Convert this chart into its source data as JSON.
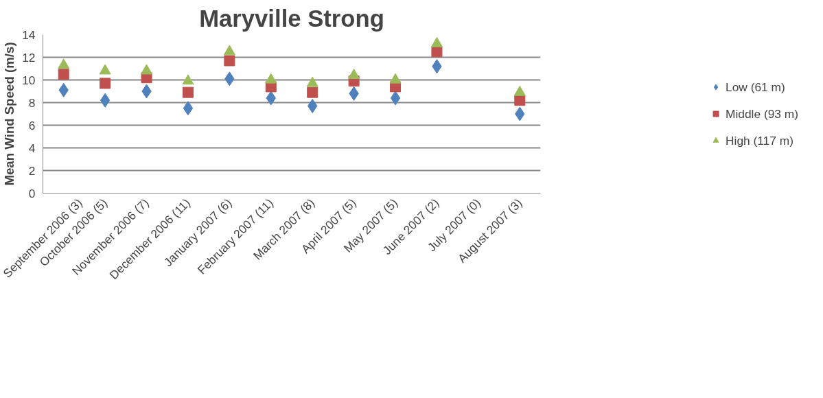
{
  "chart_data": {
    "type": "scatter",
    "title": "Maryville Strong",
    "ylabel": "Mean Wind Speed (m/s)",
    "categories": [
      "September 2006 (3)",
      "October 2006 (5)",
      "November 2006 (7)",
      "December 2006 (11)",
      "January 2007 (6)",
      "February 2007 (11)",
      "March 2007 (8)",
      "April 2007 (5)",
      "May 2007 (5)",
      "June 2007 (2)",
      "July 2007 (0)",
      "August 2007 (3)"
    ],
    "series": [
      {
        "name": "Low (61 m)",
        "color": "#4f81bd",
        "marker": "diamond",
        "values": [
          9.1,
          8.2,
          9.0,
          7.5,
          10.1,
          8.4,
          7.7,
          8.8,
          8.4,
          11.2,
          null,
          7.0
        ]
      },
      {
        "name": "Middle (93 m)",
        "color": "#c0504d",
        "marker": "square",
        "values": [
          10.5,
          9.7,
          10.2,
          8.9,
          11.7,
          9.4,
          8.9,
          9.9,
          9.4,
          12.5,
          null,
          8.2
        ]
      },
      {
        "name": "High (117 m)",
        "color": "#9bbb59",
        "marker": "triangle",
        "values": [
          11.3,
          10.8,
          10.8,
          9.9,
          12.5,
          10.0,
          9.7,
          10.4,
          10.0,
          13.2,
          null,
          8.9
        ]
      }
    ],
    "ylim": [
      0,
      14
    ],
    "yticks": [
      0,
      2,
      4,
      6,
      8,
      10,
      12,
      14
    ],
    "grid": "y",
    "legend": "right"
  }
}
